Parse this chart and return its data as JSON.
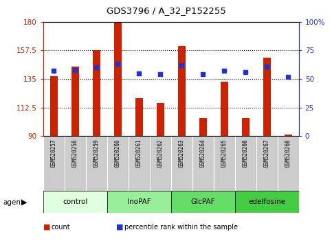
{
  "title": "GDS3796 / A_32_P152255",
  "samples": [
    "GSM520257",
    "GSM520258",
    "GSM520259",
    "GSM520260",
    "GSM520261",
    "GSM520262",
    "GSM520263",
    "GSM520264",
    "GSM520265",
    "GSM520266",
    "GSM520267",
    "GSM520268"
  ],
  "bar_values": [
    137,
    145,
    157.5,
    180,
    120,
    116,
    161,
    104,
    133,
    104,
    152,
    91
  ],
  "percentile_values": [
    57,
    58,
    60,
    63,
    55,
    54,
    62,
    54,
    57,
    56,
    61,
    52
  ],
  "bar_bottom": 90,
  "groups": [
    {
      "label": "control",
      "start": 0,
      "end": 3,
      "color": "#dfffdf"
    },
    {
      "label": "InoPAF",
      "start": 3,
      "end": 6,
      "color": "#99ee99"
    },
    {
      "label": "GlcPAF",
      "start": 6,
      "end": 9,
      "color": "#66dd66"
    },
    {
      "label": "edelfosine",
      "start": 9,
      "end": 12,
      "color": "#44cc44"
    }
  ],
  "ylim_left": [
    90,
    180
  ],
  "ylim_right": [
    0,
    100
  ],
  "yticks_left": [
    90,
    112.5,
    135,
    157.5,
    180
  ],
  "yticks_right": [
    0,
    25,
    50,
    75,
    100
  ],
  "grid_ticks": [
    112.5,
    135,
    157.5
  ],
  "bar_color": "#cc2200",
  "dot_color": "#2233cc",
  "sample_box_color": "#cccccc",
  "legend_items": [
    {
      "label": "count",
      "color": "#cc2200"
    },
    {
      "label": "percentile rank within the sample",
      "color": "#2233cc"
    }
  ]
}
